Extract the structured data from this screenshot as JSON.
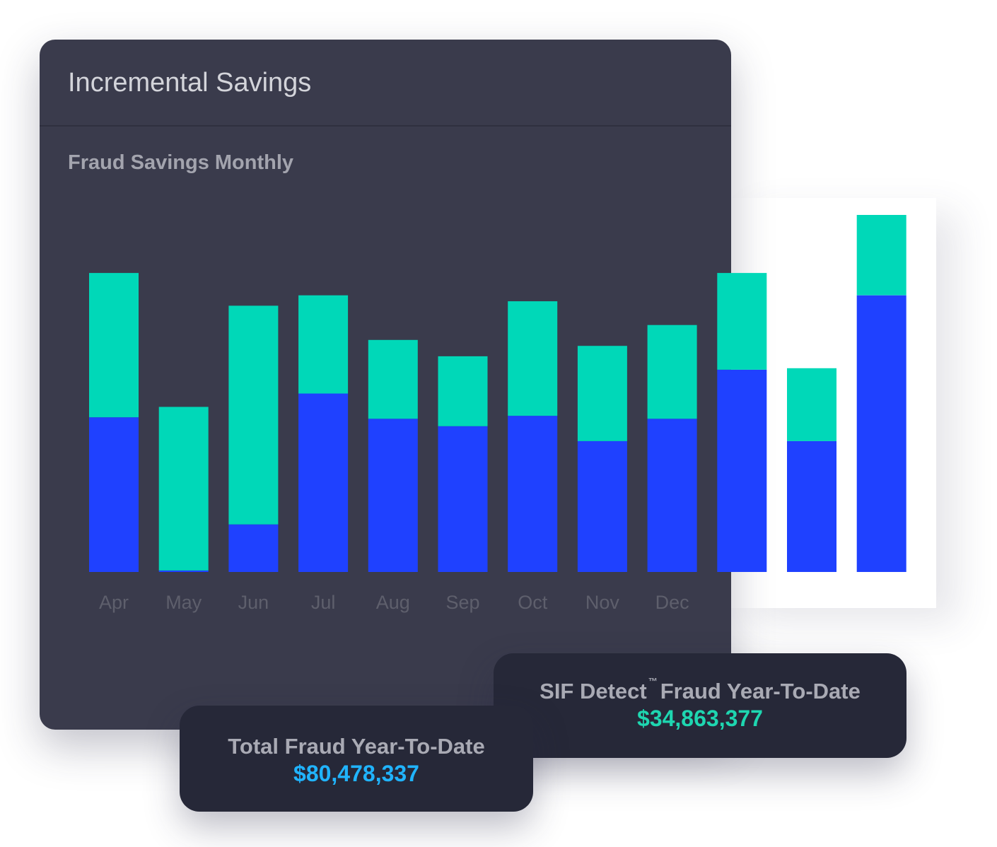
{
  "panel": {
    "title": "Incremental Savings",
    "subtitle": "Fraud Savings Monthly"
  },
  "colors": {
    "panel_bg": "#3a3b4c",
    "card_bg": "#262838",
    "series_blue": "#1f41ff",
    "series_teal": "#00d8b8",
    "total_value": "#20b4ff",
    "sif_value": "#1ed6b0",
    "tick_label": "#5e5f6c"
  },
  "chart_data": {
    "type": "bar",
    "stacked": true,
    "categories": [
      "Apr",
      "May",
      "Jun",
      "Jul",
      "Aug",
      "Sep",
      "Oct",
      "Nov",
      "Dec",
      "",
      "",
      ""
    ],
    "series": [
      {
        "color": "#1f41ff",
        "values": [
          5.2,
          0.05,
          1.6,
          6.0,
          5.15,
          4.9,
          5.25,
          4.4,
          5.15,
          6.8,
          4.4,
          9.3
        ]
      },
      {
        "color": "#00d8b8",
        "values": [
          4.85,
          5.5,
          7.35,
          3.3,
          2.65,
          2.35,
          3.85,
          3.2,
          3.15,
          3.25,
          2.45,
          2.7
        ]
      }
    ],
    "ylim": [
      0,
      12.5
    ],
    "grid": false,
    "legend": "none"
  },
  "cards": {
    "sif": {
      "label_brand": "SIF Detect",
      "trademark": "™",
      "label_rest": "Fraud Year-To-Date",
      "value": "$34,863,377"
    },
    "total": {
      "label": "Total Fraud Year-To-Date",
      "value": "$80,478,337"
    }
  }
}
